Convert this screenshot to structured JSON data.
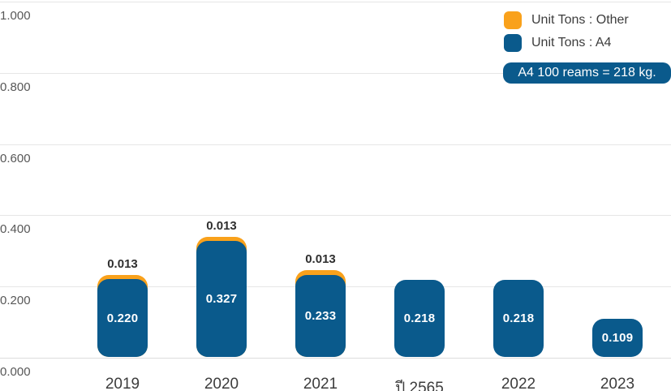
{
  "chart_data": {
    "type": "bar",
    "stacked": true,
    "title": "",
    "xlabel": "",
    "ylabel": "",
    "categories": [
      "2019",
      "2020",
      "2021",
      "ปี 2565",
      "2022",
      "2023"
    ],
    "series": [
      {
        "name": "Unit Tons : A4",
        "color": "#0a5a8c",
        "values": [
          0.22,
          0.327,
          0.233,
          0.218,
          0.218,
          0.109
        ],
        "labels": [
          "0.220",
          "0.327",
          "0.233",
          "0.218",
          "0.218",
          "0.109"
        ],
        "label_placement": "inside"
      },
      {
        "name": "Unit Tons : Other",
        "color": "#f9a11b",
        "values": [
          0.013,
          0.013,
          0.013,
          0,
          0,
          0
        ],
        "labels": [
          "0.013",
          "0.013",
          "0.013",
          "",
          "",
          ""
        ],
        "label_placement": "above"
      }
    ],
    "y_ticks": [
      "0.000",
      "0.200",
      "0.400",
      "0.600",
      "0.800",
      "1.000"
    ],
    "ylim": [
      0,
      1.0
    ],
    "grid": true,
    "legend_position": "top-right"
  },
  "legend": {
    "items": [
      {
        "label": "Unit Tons : Other",
        "color": "#f9a11b"
      },
      {
        "label": "Unit Tons : A4",
        "color": "#0a5a8c"
      }
    ]
  },
  "badge": {
    "text": "A4 100 reams = 218 kg.",
    "bg": "#0a5a8c",
    "text_color": "#ffffff"
  }
}
